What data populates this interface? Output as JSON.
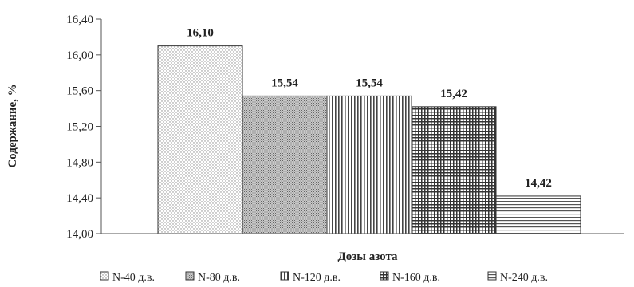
{
  "chart_data": {
    "type": "bar",
    "title": "",
    "xlabel": "Дозы азота",
    "ylabel": "Содержание, %",
    "ylim": [
      14.0,
      16.4
    ],
    "ytick_step": 0.4,
    "ytick_labels": [
      "14,00",
      "14,40",
      "14,80",
      "15,20",
      "15,60",
      "16,00",
      "16,40"
    ],
    "grid": false,
    "legend_position": "bottom",
    "series": [
      {
        "name": "N-40 д.в.",
        "value": 16.1,
        "label": "16,10",
        "pattern": "dots"
      },
      {
        "name": "N-80 д.в.",
        "value": 15.54,
        "label": "15,54",
        "pattern": "dense"
      },
      {
        "name": "N-120 д.в.",
        "value": 15.54,
        "label": "15,54",
        "pattern": "vertical"
      },
      {
        "name": "N-160 д.в.",
        "value": 15.42,
        "label": "15,42",
        "pattern": "grid"
      },
      {
        "name": "N-240 д.в.",
        "value": 14.42,
        "label": "14,42",
        "pattern": "horizontal"
      }
    ]
  }
}
